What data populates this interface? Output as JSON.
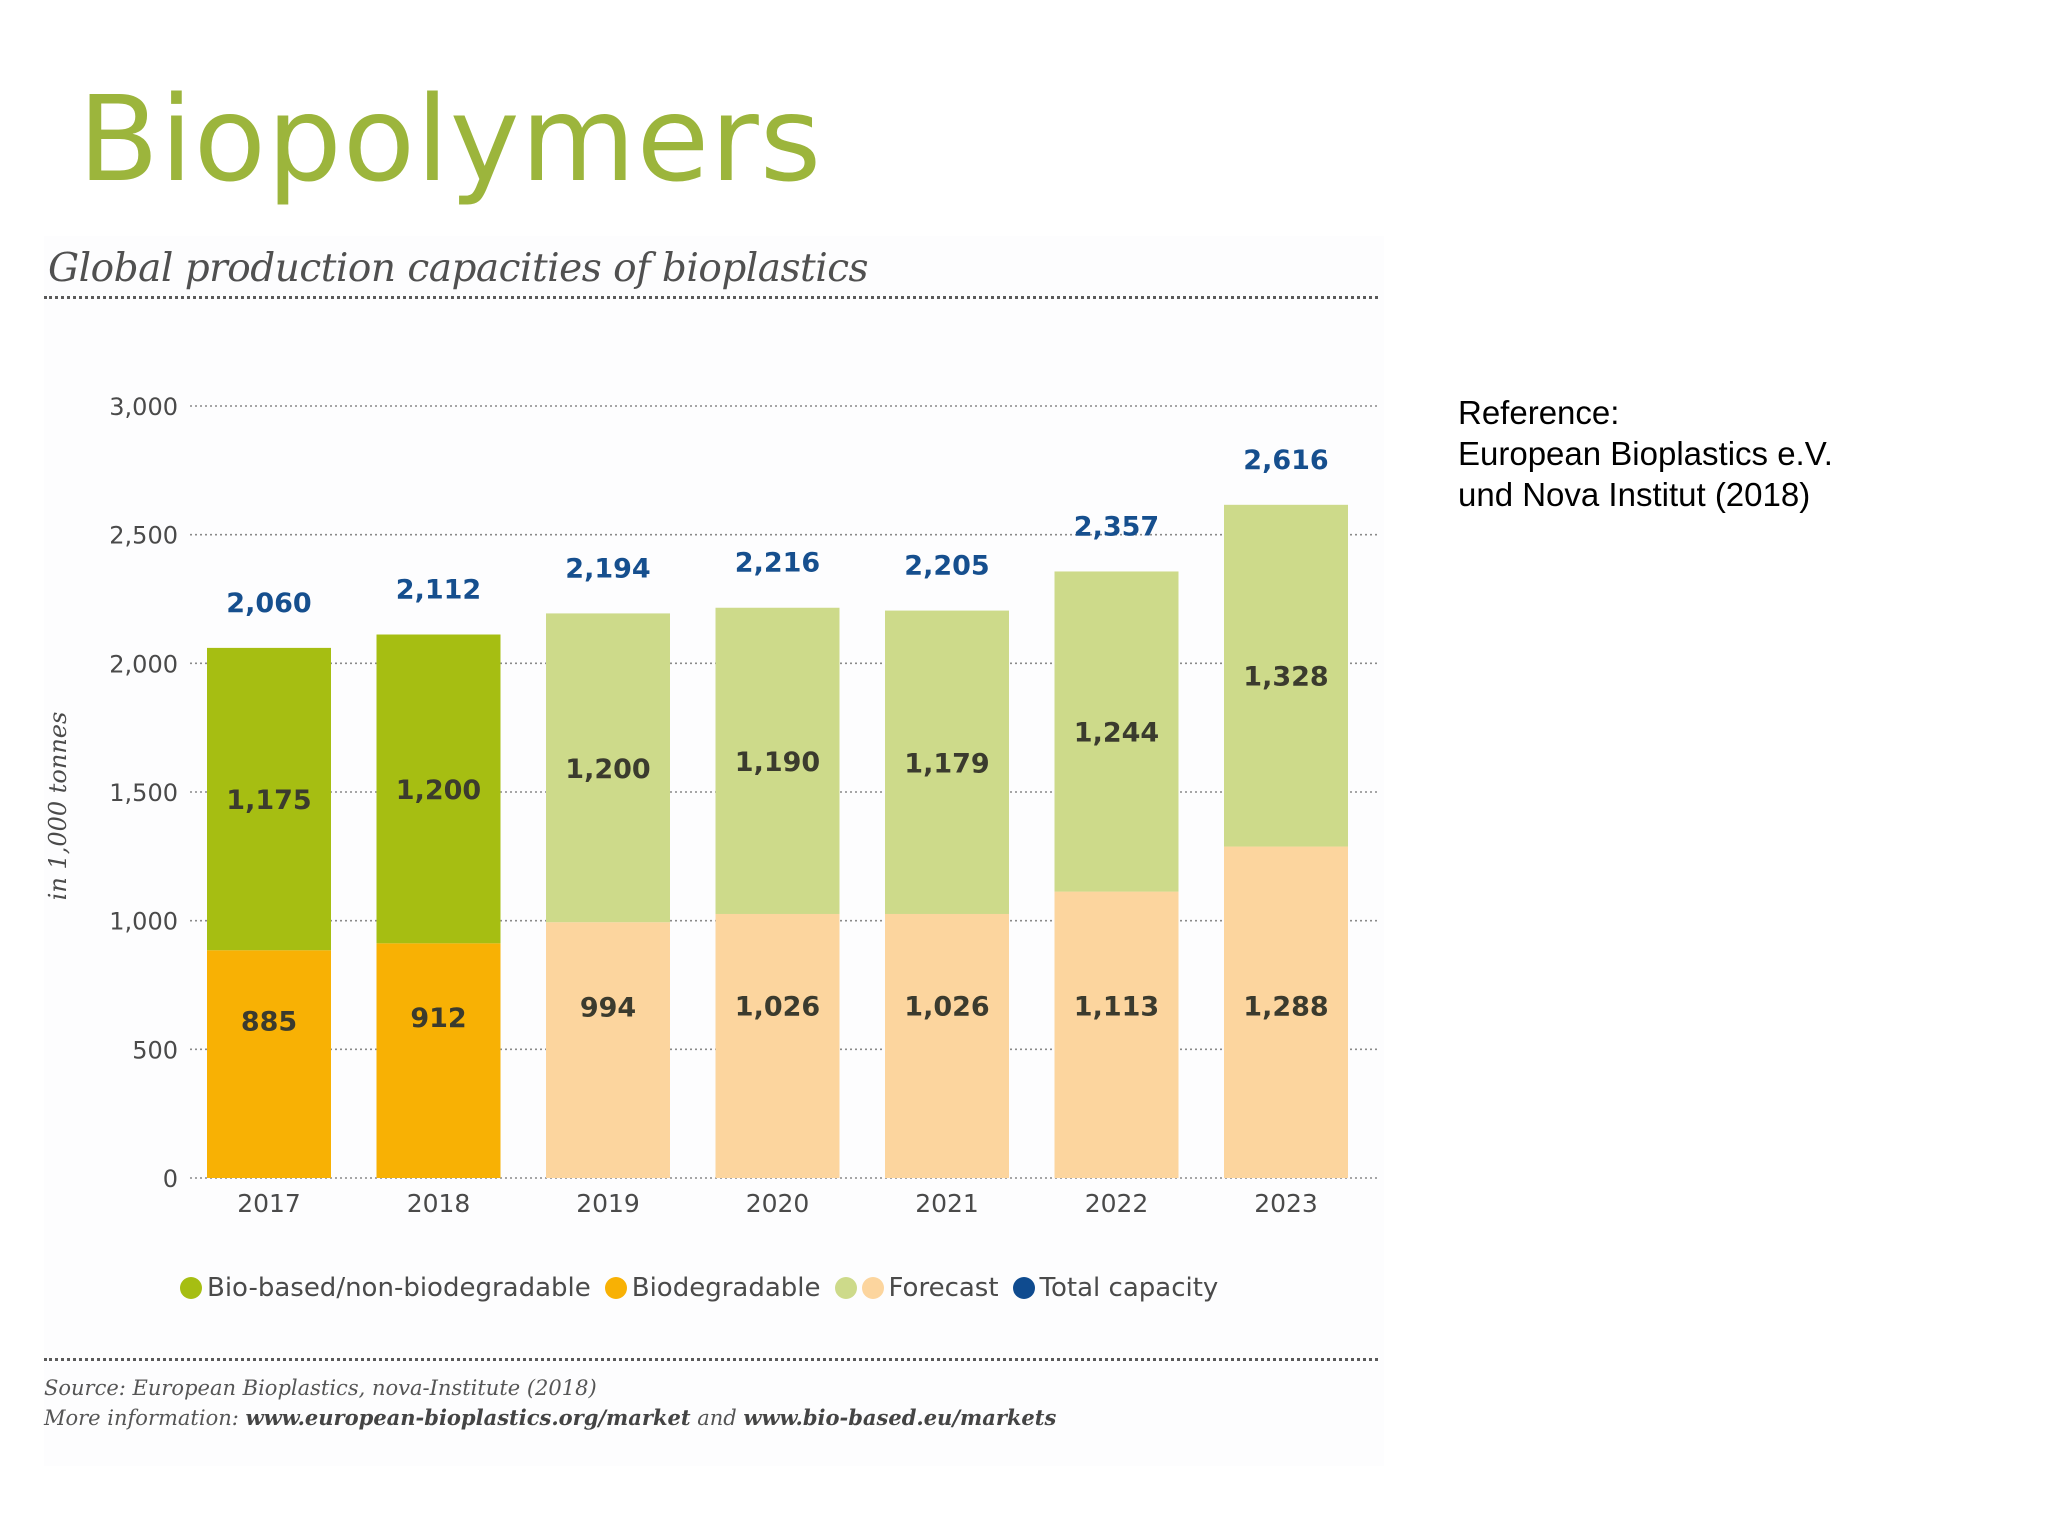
{
  "slide": {
    "title": "Biopolymers",
    "reference": [
      "Reference:",
      "European Bioplastics e.V.",
      "und Nova Institut (2018)"
    ]
  },
  "source": {
    "line1": "Source: European Bioplastics, nova-Institute (2018)",
    "line2_prefix": "More information: ",
    "link1": "www.european-bioplastics.org/market",
    "connector": " and ",
    "link2": "www.bio-based.eu/markets"
  },
  "legend": {
    "items": [
      {
        "label": "Bio-based/non-biodegradable",
        "colors": [
          "#a6be12"
        ]
      },
      {
        "label": "Biodegradable",
        "colors": [
          "#f8b104"
        ]
      },
      {
        "label": "Forecast",
        "colors": [
          "#cdda8a",
          "#fcd59e"
        ]
      },
      {
        "label": "Total capacity",
        "colors": [
          "#0f4b8f"
        ]
      }
    ]
  },
  "colors": {
    "biobased": "#a6be12",
    "biodegradable": "#f8b104",
    "forecast_biobased": "#cdda8a",
    "forecast_biodegradable": "#fcd59e",
    "total_label": "#164f8e",
    "value_label": "#3b3b2e",
    "title": "#9cb53c"
  },
  "chart_data": {
    "type": "bar",
    "stacked": true,
    "title": "Global production capacities of bioplastics",
    "ylabel": "in 1,000 tonnes",
    "xlabel": "",
    "ylim": [
      0,
      3000
    ],
    "yticks": [
      0,
      500,
      1000,
      1500,
      2000,
      2500,
      3000
    ],
    "ytick_labels": [
      "0",
      "500",
      "1,000",
      "1,500",
      "2,000",
      "2,500",
      "3,000"
    ],
    "grid": true,
    "legend_position": "bottom",
    "categories": [
      "2017",
      "2018",
      "2019",
      "2020",
      "2021",
      "2022",
      "2023"
    ],
    "forecast": [
      false,
      false,
      true,
      true,
      true,
      true,
      true
    ],
    "series": [
      {
        "name": "Biodegradable",
        "values": [
          885,
          912,
          994,
          1026,
          1026,
          1113,
          1288
        ],
        "labels": [
          "885",
          "912",
          "994",
          "1,026",
          "1,026",
          "1,113",
          "1,288"
        ]
      },
      {
        "name": "Bio-based/non-biodegradable",
        "values": [
          1175,
          1200,
          1200,
          1190,
          1179,
          1244,
          1328
        ],
        "labels": [
          "1,175",
          "1,200",
          "1,200",
          "1,190",
          "1,179",
          "1,244",
          "1,328"
        ]
      }
    ],
    "totals": {
      "name": "Total capacity",
      "values": [
        2060,
        2112,
        2194,
        2216,
        2205,
        2357,
        2616
      ],
      "labels": [
        "2,060",
        "2,112",
        "2,194",
        "2,216",
        "2,205",
        "2,357",
        "2,616"
      ]
    }
  }
}
